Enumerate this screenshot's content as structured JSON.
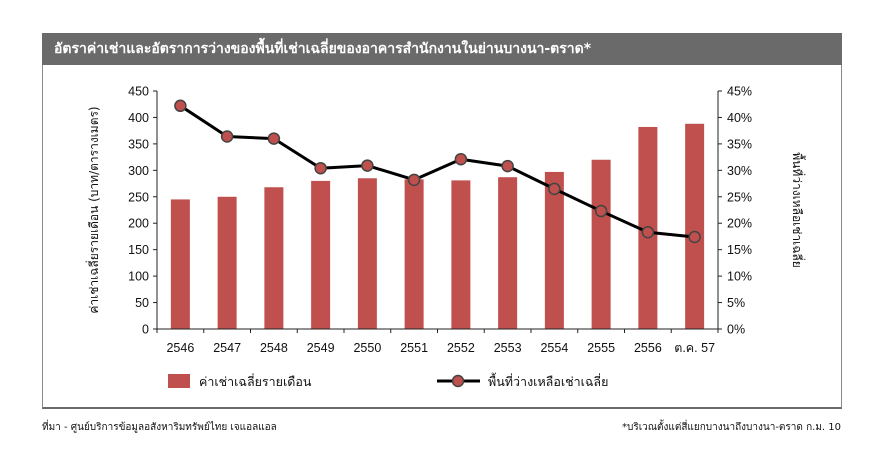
{
  "header": {
    "title": "อัตราค่าเช่าและอัตราการว่างของพื้นที่เช่าเฉลี่ยของอาคารสำนักงานในย่านบางนา-ตราด*"
  },
  "footer": {
    "source": "ที่มา - ศูนย์บริการข้อมูลอสังหาริมทรัพย์ไทย เจแอลแอล",
    "note": "*บริเวณตั้งแต่สี่แยกบางนาถึงบางนา-ตราด ก.ม. 10"
  },
  "chart_data": {
    "type": "bar+line",
    "categories": [
      "2546",
      "2547",
      "2548",
      "2549",
      "2550",
      "2551",
      "2552",
      "2553",
      "2554",
      "2555",
      "2556",
      "ต.ค. 57"
    ],
    "left_axis": {
      "label": "ค่าเช่าเฉลี่ยรายเดือน (บาท/ตารางเมตร)",
      "min": 0,
      "max": 450,
      "step": 50,
      "ticks": [
        "0",
        "50",
        "100",
        "150",
        "200",
        "250",
        "300",
        "350",
        "400",
        "450"
      ]
    },
    "right_axis": {
      "label": "พื้นที่ว่างเหลือเช่าเฉลี่ย",
      "min": 0,
      "max": 45,
      "step": 5,
      "ticks": [
        "0%",
        "5%",
        "10%",
        "15%",
        "20%",
        "25%",
        "30%",
        "35%",
        "40%",
        "45%"
      ]
    },
    "series": [
      {
        "name": "ค่าเช่าเฉลี่ยรายเดือน",
        "kind": "bar",
        "axis": "left",
        "color": "#c0504d",
        "values": [
          245,
          250,
          268,
          280,
          285,
          283,
          281,
          287,
          297,
          320,
          382,
          388
        ]
      },
      {
        "name": "พื้นที่ว่างเหลือเช่าเฉลี่ย",
        "kind": "line",
        "axis": "right",
        "color": "#000000",
        "marker_color": "#c0504d",
        "values": [
          42.2,
          36.4,
          36.0,
          30.4,
          30.9,
          28.2,
          32.1,
          30.8,
          26.5,
          22.3,
          18.3,
          17.4
        ]
      }
    ],
    "grid": false,
    "legend_position": "bottom"
  }
}
